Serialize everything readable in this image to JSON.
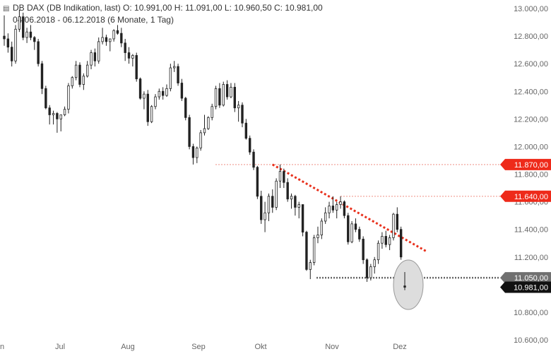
{
  "header": {
    "line1": "DB DAX (DB Indikation, last)  O: 10.991,00  H: 11.091,00  L: 10.960,50  C: 10.981,00",
    "line2": "04.06.2018 - 06.12.2018   (6 Monate, 1 Tag)"
  },
  "colors": {
    "candle": "#222222",
    "grid": "#dddddd",
    "resistance_line": "#e8301c",
    "resistance_dotted": "#f4b5ad",
    "support_line": "#666666",
    "tag_red": "#ee2a1a",
    "tag_gray": "#707070",
    "tag_black": "#111111"
  },
  "chart_data": {
    "type": "candlestick",
    "ylim": [
      10600,
      13000
    ],
    "y_ticks": [
      "13.000,00",
      "12.800,00",
      "12.600,00",
      "12.400,00",
      "12.200,00",
      "12.000,00",
      "11.800,00",
      "11.600,00",
      "11.400,00",
      "11.200,00",
      "11.000,00",
      "10.800,00",
      "10.600,00"
    ],
    "x_ticks": [
      "Jun",
      "Jul",
      "Aug",
      "Sep",
      "Okt",
      "Nov",
      "Dez"
    ],
    "price_tags": [
      {
        "label": "11.870,00",
        "value": 11870,
        "style": "red"
      },
      {
        "label": "11.640,00",
        "value": 11640,
        "style": "red"
      },
      {
        "label": "11.050,00",
        "value": 11050,
        "style": "gray"
      },
      {
        "label": "10.981,00",
        "value": 10981,
        "style": "black"
      }
    ],
    "candles": [
      [
        12800,
        12950,
        12730,
        12780
      ],
      [
        12780,
        12820,
        12680,
        12720
      ],
      [
        12720,
        12760,
        12580,
        12620
      ],
      [
        12620,
        12880,
        12600,
        12850
      ],
      [
        12850,
        12990,
        12830,
        12940
      ],
      [
        12940,
        12970,
        12770,
        12790
      ],
      [
        12790,
        12860,
        12750,
        12830
      ],
      [
        12830,
        12880,
        12770,
        12790
      ],
      [
        12790,
        12800,
        12700,
        12760
      ],
      [
        12760,
        12780,
        12580,
        12600
      ],
      [
        12600,
        12620,
        12380,
        12420
      ],
      [
        12420,
        12440,
        12270,
        12280
      ],
      [
        12280,
        12300,
        12160,
        12230
      ],
      [
        12230,
        12260,
        12160,
        12240
      ],
      [
        12240,
        12250,
        12100,
        12200
      ],
      [
        12200,
        12230,
        12110,
        12230
      ],
      [
        12230,
        12290,
        12220,
        12270
      ],
      [
        12270,
        12460,
        12240,
        12440
      ],
      [
        12440,
        12510,
        12420,
        12500
      ],
      [
        12500,
        12620,
        12480,
        12590
      ],
      [
        12590,
        12610,
        12430,
        12450
      ],
      [
        12450,
        12530,
        12410,
        12510
      ],
      [
        12510,
        12620,
        12500,
        12590
      ],
      [
        12590,
        12700,
        12560,
        12680
      ],
      [
        12680,
        12710,
        12580,
        12620
      ],
      [
        12620,
        12790,
        12600,
        12760
      ],
      [
        12760,
        12860,
        12740,
        12790
      ],
      [
        12790,
        12810,
        12730,
        12760
      ],
      [
        12760,
        12780,
        12690,
        12780
      ],
      [
        12780,
        12850,
        12760,
        12840
      ],
      [
        12840,
        12880,
        12810,
        12820
      ],
      [
        12820,
        12860,
        12720,
        12750
      ],
      [
        12750,
        12780,
        12620,
        12680
      ],
      [
        12680,
        12720,
        12600,
        12640
      ],
      [
        12640,
        12670,
        12580,
        12660
      ],
      [
        12660,
        12680,
        12470,
        12490
      ],
      [
        12490,
        12500,
        12340,
        12350
      ],
      [
        12350,
        12400,
        12270,
        12380
      ],
      [
        12380,
        12410,
        12150,
        12180
      ],
      [
        12180,
        12300,
        12170,
        12290
      ],
      [
        12290,
        12380,
        12270,
        12360
      ],
      [
        12360,
        12420,
        12340,
        12400
      ],
      [
        12400,
        12430,
        12340,
        12370
      ],
      [
        12370,
        12450,
        12360,
        12420
      ],
      [
        12420,
        12600,
        12400,
        12570
      ],
      [
        12570,
        12620,
        12540,
        12580
      ],
      [
        12580,
        12600,
        12440,
        12460
      ],
      [
        12460,
        12490,
        12330,
        12350
      ],
      [
        12350,
        12360,
        12190,
        12210
      ],
      [
        12210,
        12230,
        11980,
        12000
      ],
      [
        12000,
        12020,
        11870,
        11920
      ],
      [
        11920,
        12000,
        11880,
        11990
      ],
      [
        11990,
        12120,
        11970,
        12100
      ],
      [
        12100,
        12230,
        12080,
        12130
      ],
      [
        12130,
        12220,
        12120,
        12210
      ],
      [
        12210,
        12310,
        12190,
        12290
      ],
      [
        12290,
        12440,
        12270,
        12420
      ],
      [
        12420,
        12460,
        12280,
        12300
      ],
      [
        12300,
        12470,
        12290,
        12450
      ],
      [
        12450,
        12480,
        12340,
        12360
      ],
      [
        12360,
        12460,
        12350,
        12430
      ],
      [
        12430,
        12460,
        12250,
        12280
      ],
      [
        12280,
        12330,
        12180,
        12300
      ],
      [
        12300,
        12320,
        12140,
        12170
      ],
      [
        12170,
        12200,
        12050,
        12060
      ],
      [
        12060,
        12080,
        11940,
        11960
      ],
      [
        11960,
        11980,
        11830,
        11850
      ],
      [
        11850,
        11860,
        11620,
        11640
      ],
      [
        11640,
        11680,
        11440,
        11470
      ],
      [
        11470,
        11600,
        11380,
        11520
      ],
      [
        11520,
        11660,
        11460,
        11640
      ],
      [
        11640,
        11690,
        11520,
        11560
      ],
      [
        11560,
        11770,
        11540,
        11750
      ],
      [
        11750,
        11870,
        11700,
        11820
      ],
      [
        11820,
        11840,
        11700,
        11740
      ],
      [
        11740,
        11770,
        11600,
        11620
      ],
      [
        11620,
        11660,
        11550,
        11640
      ],
      [
        11640,
        11650,
        11500,
        11560
      ],
      [
        11560,
        11600,
        11480,
        11580
      ],
      [
        11580,
        11580,
        11350,
        11380
      ],
      [
        11380,
        11390,
        11100,
        11110
      ],
      [
        11110,
        11180,
        11040,
        11160
      ],
      [
        11160,
        11360,
        11140,
        11340
      ],
      [
        11340,
        11420,
        11300,
        11360
      ],
      [
        11360,
        11480,
        11330,
        11460
      ],
      [
        11460,
        11560,
        11440,
        11520
      ],
      [
        11520,
        11600,
        11480,
        11570
      ],
      [
        11570,
        11640,
        11520,
        11540
      ],
      [
        11540,
        11600,
        11480,
        11580
      ],
      [
        11580,
        11640,
        11550,
        11600
      ],
      [
        11600,
        11610,
        11480,
        11500
      ],
      [
        11500,
        11520,
        11290,
        11310
      ],
      [
        11310,
        11460,
        11300,
        11440
      ],
      [
        11440,
        11480,
        11380,
        11400
      ],
      [
        11400,
        11420,
        11310,
        11330
      ],
      [
        11330,
        11350,
        11150,
        11180
      ],
      [
        11180,
        11190,
        11020,
        11050
      ],
      [
        11050,
        11150,
        11030,
        11130
      ],
      [
        11130,
        11200,
        11080,
        11180
      ],
      [
        11180,
        11320,
        11150,
        11300
      ],
      [
        11300,
        11380,
        11260,
        11350
      ],
      [
        11350,
        11390,
        11270,
        11290
      ],
      [
        11290,
        11360,
        11250,
        11340
      ],
      [
        11340,
        11520,
        11320,
        11510
      ],
      [
        11510,
        11560,
        11380,
        11400
      ],
      [
        11400,
        11420,
        11180,
        11200
      ],
      [
        10991,
        11091,
        10960,
        10981
      ]
    ]
  }
}
